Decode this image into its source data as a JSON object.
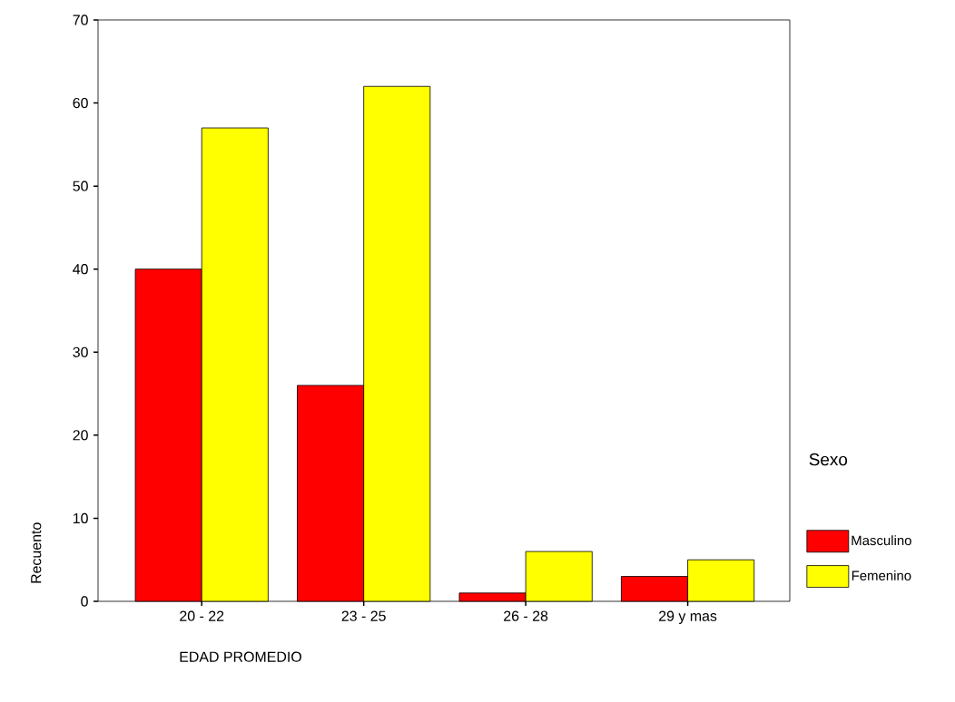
{
  "chart_data": {
    "type": "bar",
    "xlabel": "EDAD PROMEDIO",
    "ylabel": "Recuento",
    "legend_title": "Sexo",
    "categories": [
      "20 - 22",
      "23 - 25",
      "26 - 28",
      "29 y mas"
    ],
    "series": [
      {
        "name": "Masculino",
        "color": "#ff0000",
        "values": [
          40,
          26,
          1,
          3
        ]
      },
      {
        "name": "Femenino",
        "color": "#ffff00",
        "values": [
          57,
          62,
          6,
          5
        ]
      }
    ],
    "ylim": [
      0,
      70
    ],
    "yticks": [
      0,
      10,
      20,
      30,
      40,
      50,
      60,
      70
    ],
    "grid": false,
    "legend": "right"
  }
}
